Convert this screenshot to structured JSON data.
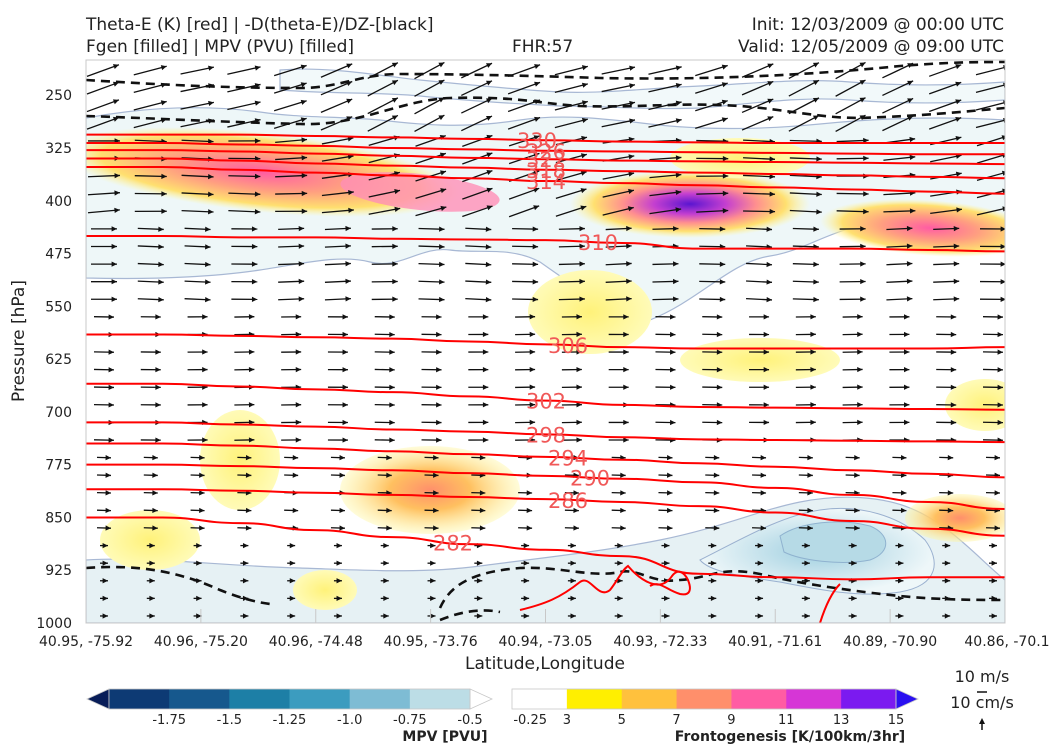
{
  "header": {
    "left_line1": "Theta-E (K) [red] | -D(theta-E)/DZ-[black]",
    "left_line2": "Fgen [filled] | MPV (PVU) [filled]",
    "center": "FHR:57",
    "right_line1": "Init: 12/03/2009 @ 00:00 UTC",
    "right_line2": "Valid: 12/05/2009 @ 09:00 UTC"
  },
  "chart_data": {
    "type": "cross-section",
    "xlabel": "Latitude,Longitude",
    "ylabel": "Pressure [hPa]",
    "x_ticks": [
      "40.95, -75.92",
      "40.96, -75.20",
      "40.96, -74.48",
      "40.95, -73.76",
      "40.94, -73.05",
      "40.93, -72.33",
      "40.91, -71.61",
      "40.89, -70.90",
      "40.86, -70.1"
    ],
    "y_ticks": [
      250,
      325,
      400,
      475,
      550,
      625,
      700,
      775,
      850,
      925,
      1000
    ],
    "ylim": [
      1000,
      200
    ],
    "y_inverted": true,
    "theta_e_contours": {
      "color": "#ff0000",
      "label_color": "#f05858",
      "levels": [
        {
          "value": "330",
          "y": [
            306,
            306,
            306,
            308,
            310,
            312,
            314,
            316,
            317,
            318,
            318,
            318,
            318
          ]
        },
        {
          "value": "326",
          "y": [
            318,
            318,
            320,
            322,
            325,
            327,
            329,
            330,
            331,
            332,
            333,
            334,
            334
          ]
        },
        {
          "value": "322",
          "y": [
            328,
            328,
            330,
            333,
            336,
            339,
            341,
            343,
            344,
            345,
            346,
            347,
            348
          ]
        },
        {
          "value": "318",
          "y": [
            340,
            340,
            343,
            347,
            350,
            353,
            356,
            358,
            360,
            362,
            364,
            366,
            368
          ]
        },
        {
          "value": "314",
          "y": [
            352,
            352,
            356,
            360,
            364,
            368,
            372,
            375,
            378,
            381,
            384,
            387,
            390
          ]
        },
        {
          "value": "310",
          "y": [
            450,
            450,
            452,
            452,
            454,
            455,
            456,
            460,
            468,
            468,
            468,
            470,
            472
          ]
        },
        {
          "value": "306",
          "y": [
            590,
            590,
            592,
            594,
            596,
            600,
            604,
            608,
            610,
            610,
            610,
            610,
            608
          ]
        },
        {
          "value": "302",
          "y": [
            660,
            660,
            664,
            668,
            672,
            678,
            684,
            690,
            693,
            694,
            695,
            696,
            697
          ]
        },
        {
          "value": "298",
          "y": [
            715,
            715,
            718,
            721,
            725,
            728,
            732,
            736,
            739,
            740,
            741,
            742,
            743
          ]
        },
        {
          "value": "294",
          "y": [
            745,
            745,
            748,
            752,
            756,
            760,
            764,
            768,
            773,
            778,
            783,
            788,
            793
          ]
        },
        {
          "value": "290",
          "y": [
            775,
            775,
            777,
            780,
            783,
            787,
            791,
            795,
            800,
            808,
            818,
            828,
            838
          ]
        },
        {
          "value": "286",
          "y": [
            810,
            810,
            812,
            815,
            818,
            821,
            824,
            828,
            834,
            843,
            855,
            866,
            876
          ]
        },
        {
          "value": "282",
          "y": [
            850,
            850,
            858,
            868,
            878,
            888,
            896,
            905,
            930,
            935,
            938,
            935,
            935
          ]
        }
      ]
    },
    "legend_wind": {
      "label1": "10 m/s",
      "label2": "10 cm/s"
    },
    "mpv_colorbar": {
      "title": "MPV [PVU]",
      "ticks": [
        "-1.75",
        "-1.5",
        "-1.25",
        "-1.0",
        "-0.75",
        "-0.5",
        "-0.25"
      ],
      "colors": [
        "#081d58",
        "#0d3a74",
        "#16588d",
        "#1d7fa6",
        "#3c9cbf",
        "#7ebcd4",
        "#bcdde6",
        "#ffffff"
      ]
    },
    "fgen_colorbar": {
      "title": "Frontogenesis [K/100km/3hr]",
      "ticks": [
        "3",
        "5",
        "7",
        "9",
        "11",
        "13",
        "15"
      ],
      "colors": [
        "#ffffff",
        "#ffef00",
        "#ffc13d",
        "#ff8f6b",
        "#ff5ca3",
        "#d636d6",
        "#7b1af0",
        "#2a10f0"
      ]
    }
  }
}
